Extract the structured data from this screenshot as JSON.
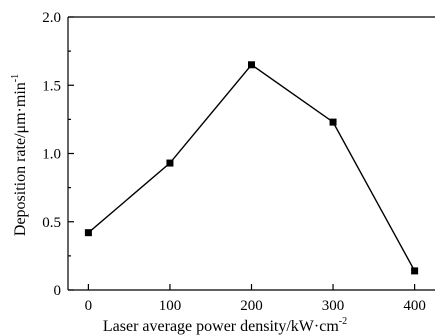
{
  "chart_data": {
    "type": "line",
    "xlabel": "Laser average power density/kW·cm",
    "xlabel_sup": "-2",
    "ylabel": "Deposition rate/μm·min",
    "ylabel_sup": "-1",
    "xlim": [
      -25,
      425
    ],
    "ylim": [
      0,
      2.0
    ],
    "x_ticks": [
      0,
      100,
      200,
      300,
      400
    ],
    "x_tick_labels": [
      "0",
      "100",
      "200",
      "300",
      "400"
    ],
    "y_ticks": [
      0,
      0.5,
      1.0,
      1.5,
      2.0
    ],
    "y_tick_labels": [
      "0",
      "0.5",
      "1.0",
      "1.5",
      "2.0"
    ],
    "grid": false,
    "series": [
      {
        "marker": "square",
        "color": "#000000",
        "x": [
          0,
          100,
          200,
          300,
          400
        ],
        "y": [
          0.42,
          0.93,
          1.65,
          1.23,
          0.14
        ]
      }
    ]
  }
}
